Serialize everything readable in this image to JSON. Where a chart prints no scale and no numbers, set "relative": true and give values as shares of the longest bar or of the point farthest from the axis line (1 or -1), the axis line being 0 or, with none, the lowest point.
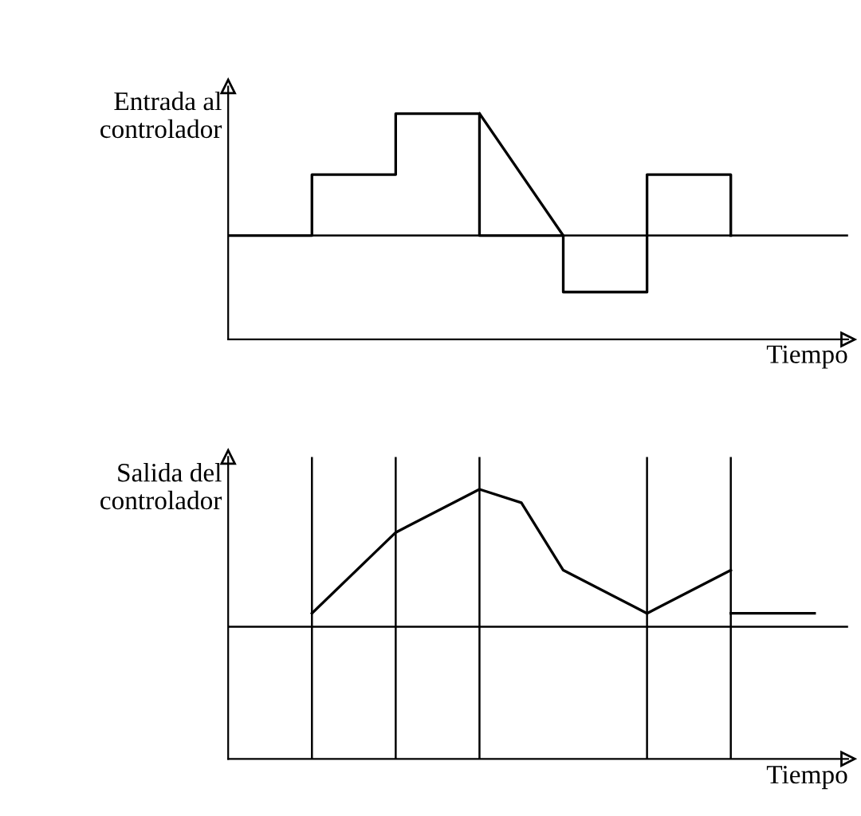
{
  "chart_data": [
    {
      "type": "step",
      "relative": true,
      "ylabel": "Entrada al\ncontrolador",
      "xlabel": "Tiempo",
      "categories": [
        null,
        null,
        null,
        null,
        null,
        null,
        null,
        null,
        null,
        null,
        null,
        null,
        null,
        null,
        null
      ],
      "series": [
        {
          "color": "#000000",
          "values": [
            0.46,
            0.46,
            0.73,
            0.73,
            1,
            1,
            0.46,
            0.46,
            0.21,
            0.21,
            0.73,
            0.73,
            0.46,
            null,
            null
          ]
        },
        {
          "type": "line",
          "color": "#000000",
          "values": [
            null,
            null,
            null,
            null,
            null,
            null,
            1,
            null,
            0.46,
            null,
            null,
            null,
            null,
            null,
            null
          ]
        }
      ],
      "ref_lines": [
        {
          "axis": "y",
          "value": 0.46
        }
      ]
    },
    {
      "type": "line",
      "relative": true,
      "ylabel": "Salida del\ncontrolador",
      "xlabel": "Tiempo",
      "categories": [
        null,
        null,
        null,
        null,
        null,
        null,
        null,
        null,
        null,
        null,
        null,
        null,
        null,
        null,
        null
      ],
      "series": [
        {
          "color": "#000000",
          "values": [
            null,
            null,
            0.54,
            null,
            0.84,
            null,
            1,
            0.95,
            0.7,
            null,
            0.54,
            null,
            0.7,
            null,
            null
          ]
        },
        {
          "color": "#000000",
          "values": [
            null,
            null,
            null,
            null,
            null,
            null,
            null,
            null,
            null,
            null,
            null,
            null,
            0.54,
            0.54,
            0.54
          ]
        }
      ],
      "ref_lines": [
        {
          "axis": "y",
          "value": 0.49
        }
      ]
    }
  ]
}
